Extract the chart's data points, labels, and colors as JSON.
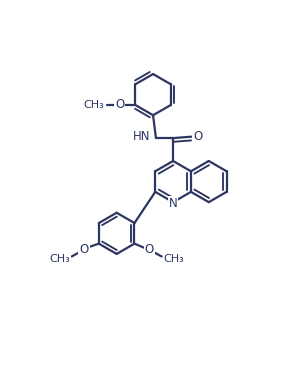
{
  "background_color": "#ffffff",
  "line_color": "#2d3561",
  "line_width": 1.6,
  "font_size": 8.5,
  "figsize": [
    2.89,
    3.66
  ],
  "dpi": 100,
  "xlim": [
    0,
    10
  ],
  "ylim": [
    0,
    12.7
  ]
}
